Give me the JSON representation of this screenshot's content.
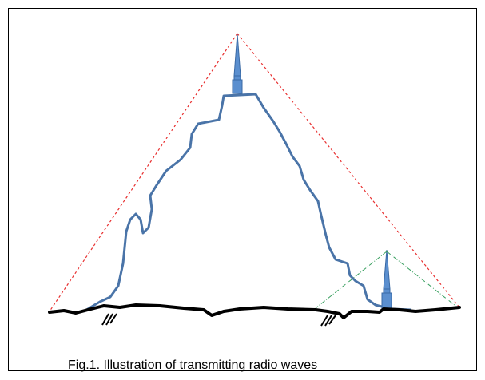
{
  "caption": "Fig.1. Illustration of transmitting radio waves"
}
